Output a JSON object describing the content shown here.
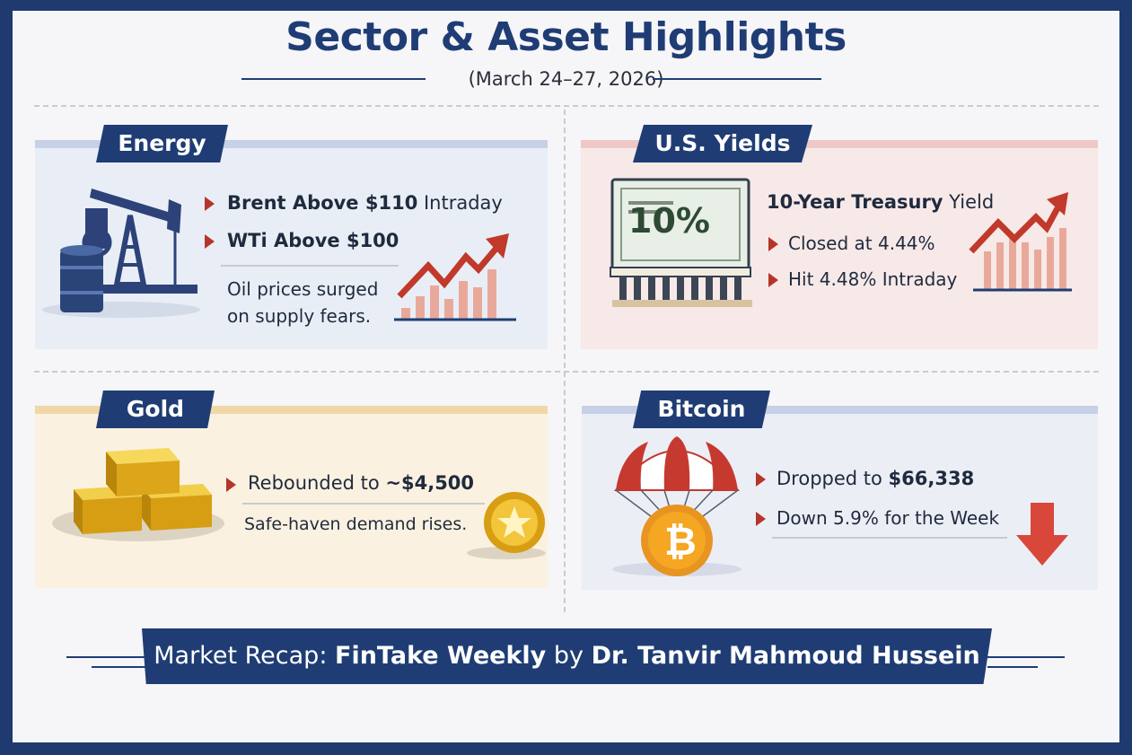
{
  "header": {
    "title": "Sector & Asset Highlights",
    "subtitle": "(March 24–27, 2026)"
  },
  "energy": {
    "tag": "Energy",
    "line1_bold": "Brent Above $110",
    "line1_rest": " Intraday",
    "line2_bold": "WTi Above $100",
    "note_line1": "Oil prices surged",
    "note_line2": "on supply fears.",
    "icons": [
      "oil-pumpjack-icon",
      "oil-barrel-icon",
      "trend-up-chart-icon"
    ]
  },
  "yields": {
    "tag": "U.S. Yields",
    "heading_bold": "10-Year Treasury",
    "heading_rest": " Yield",
    "line1": "Closed at 4.44%",
    "line2": "Hit 4.48% Intraday",
    "bond_label": "10%",
    "icons": [
      "treasury-bond-certificate-icon",
      "trend-up-chart-icon"
    ]
  },
  "gold": {
    "tag": "Gold",
    "line1_rest": "Rebounded to ",
    "line1_bold": "~$4,500",
    "note": "Safe-haven demand rises.",
    "icons": [
      "gold-bars-icon",
      "gold-coin-star-icon"
    ]
  },
  "bitcoin": {
    "tag": "Bitcoin",
    "line1_rest": "Dropped to ",
    "line1_bold": "$66,338",
    "line2": "Down 5.9% for the Week",
    "coin_symbol": "₿",
    "icons": [
      "bitcoin-parachute-icon",
      "down-arrow-icon"
    ]
  },
  "footer": {
    "prefix": "Market Recap: ",
    "brand": "FinTake Weekly",
    "by": " by ",
    "author": "Dr. Tanvir Mahmoud Hussein"
  },
  "colors": {
    "navy": "#1f3d74",
    "accent_red": "#b5352b",
    "energy_bg": "#e9eef6",
    "yields_bg": "#f7e9e8",
    "gold_bg": "#fbf1e0",
    "bitcoin_bg": "#eceef6"
  }
}
